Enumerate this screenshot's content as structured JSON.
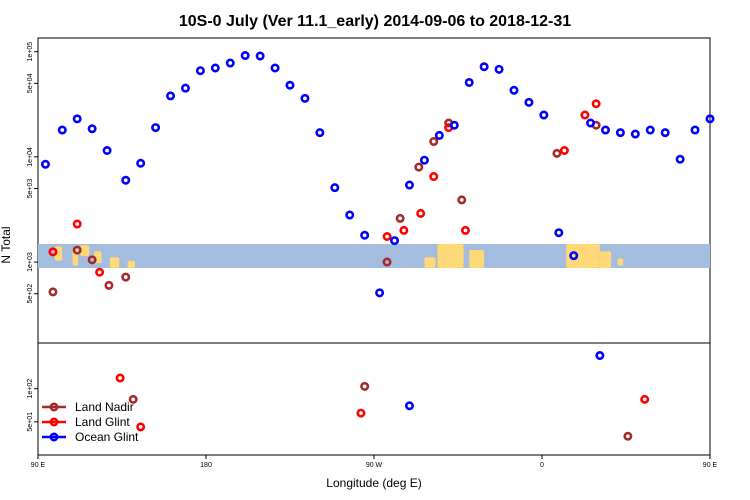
{
  "chart_data": {
    "type": "scatter",
    "title": "10S-0 July (Ver 11.1_early)   2014-09-06 to 2018-12-31",
    "xlabel": "Longitude (deg E)",
    "ylabel": "N Total",
    "xlim": [
      90,
      450
    ],
    "x_ticks": [
      {
        "value": 90,
        "label": "90 E"
      },
      {
        "value": 180,
        "label": "180"
      },
      {
        "value": 270,
        "label": "90 W"
      },
      {
        "value": 360,
        "label": "0"
      },
      {
        "value": 450,
        "label": "90 E"
      },
      {
        "value": 540,
        "label": "180"
      }
    ],
    "y_scale": "log",
    "upper_panel": {
      "ylim": [
        170,
        135000
      ],
      "y_ticks": [
        {
          "value": 500,
          "label": "5e+02"
        },
        {
          "value": 1000,
          "label": "1e+03"
        },
        {
          "value": 5000,
          "label": "5e+03"
        },
        {
          "value": 10000,
          "label": "1e+04"
        },
        {
          "value": 50000,
          "label": "5e+04"
        },
        {
          "value": 100000,
          "label": "1e+05"
        }
      ],
      "map_strip": {
        "band_color": "#a4bcde",
        "land_color": "#ffd878"
      }
    },
    "lower_panel": {
      "ylim": [
        25,
        260
      ],
      "y_ticks": [
        {
          "value": 50,
          "label": "5e+01"
        },
        {
          "value": 100,
          "label": "1e+02"
        }
      ]
    },
    "legend": {
      "placement": "bottom-left",
      "entries": [
        "Land Nadir",
        "Land Glint",
        "Ocean Glint"
      ]
    },
    "series": [
      {
        "name": "Land Nadir",
        "color": "#a52a2a",
        "upper": [
          {
            "x": 98,
            "y": 520
          },
          {
            "x": 111,
            "y": 1300
          },
          {
            "x": 119,
            "y": 1050
          },
          {
            "x": 128,
            "y": 600
          },
          {
            "x": 137,
            "y": 720
          },
          {
            "x": 277,
            "y": 1000
          },
          {
            "x": 284,
            "y": 2600
          },
          {
            "x": 294,
            "y": 8000
          },
          {
            "x": 302,
            "y": 14000
          },
          {
            "x": 310,
            "y": 21000
          },
          {
            "x": 317,
            "y": 3900
          },
          {
            "x": 368,
            "y": 10800
          },
          {
            "x": 389,
            "y": 20000
          },
          {
            "x": 465,
            "y": 500
          },
          {
            "x": 473,
            "y": 1300
          },
          {
            "x": 481,
            "y": 1050
          },
          {
            "x": 489,
            "y": 600
          },
          {
            "x": 497,
            "y": 720
          },
          {
            "x": 503,
            "y": 600
          },
          {
            "x": 510,
            "y": 720
          },
          {
            "x": 522,
            "y": 1050
          },
          {
            "x": 535,
            "y": 520
          }
        ],
        "lower": [
          {
            "x": 141,
            "y": 80
          },
          {
            "x": 265,
            "y": 105
          },
          {
            "x": 406,
            "y": 37
          },
          {
            "x": 519,
            "y": 80
          }
        ]
      },
      {
        "name": "Land Glint",
        "color": "#ff0000",
        "upper": [
          {
            "x": 98,
            "y": 1250
          },
          {
            "x": 111,
            "y": 2300
          },
          {
            "x": 123,
            "y": 800
          },
          {
            "x": 277,
            "y": 1750
          },
          {
            "x": 286,
            "y": 2000
          },
          {
            "x": 295,
            "y": 2900
          },
          {
            "x": 302,
            "y": 6500
          },
          {
            "x": 310,
            "y": 19000
          },
          {
            "x": 319,
            "y": 2000
          },
          {
            "x": 372,
            "y": 11500
          },
          {
            "x": 383,
            "y": 25000
          },
          {
            "x": 389,
            "y": 32000
          },
          {
            "x": 465,
            "y": 1250
          },
          {
            "x": 473,
            "y": 2300
          },
          {
            "x": 481,
            "y": 800
          },
          {
            "x": 493,
            "y": 800
          },
          {
            "x": 505,
            "y": 800
          },
          {
            "x": 522,
            "y": 1250
          }
        ],
        "lower": [
          {
            "x": 134,
            "y": 125
          },
          {
            "x": 145,
            "y": 45
          },
          {
            "x": 263,
            "y": 60
          },
          {
            "x": 415,
            "y": 80
          },
          {
            "x": 515,
            "y": 125
          },
          {
            "x": 526,
            "y": 45
          }
        ]
      },
      {
        "name": "Ocean Glint",
        "color": "#0000ff",
        "upper": [
          {
            "x": 94,
            "y": 8500
          },
          {
            "x": 103,
            "y": 18000
          },
          {
            "x": 111,
            "y": 23000
          },
          {
            "x": 119,
            "y": 18500
          },
          {
            "x": 127,
            "y": 11500
          },
          {
            "x": 137,
            "y": 6000
          },
          {
            "x": 145,
            "y": 8700
          },
          {
            "x": 153,
            "y": 19000
          },
          {
            "x": 161,
            "y": 38000
          },
          {
            "x": 169,
            "y": 45000
          },
          {
            "x": 177,
            "y": 66000
          },
          {
            "x": 185,
            "y": 70000
          },
          {
            "x": 193,
            "y": 78000
          },
          {
            "x": 201,
            "y": 92000
          },
          {
            "x": 209,
            "y": 91000
          },
          {
            "x": 217,
            "y": 70000
          },
          {
            "x": 225,
            "y": 48000
          },
          {
            "x": 233,
            "y": 36000
          },
          {
            "x": 241,
            "y": 17000
          },
          {
            "x": 249,
            "y": 5100
          },
          {
            "x": 257,
            "y": 2800
          },
          {
            "x": 265,
            "y": 1800
          },
          {
            "x": 273,
            "y": 510
          },
          {
            "x": 281,
            "y": 1600
          },
          {
            "x": 289,
            "y": 5400
          },
          {
            "x": 297,
            "y": 9300
          },
          {
            "x": 305,
            "y": 16000
          },
          {
            "x": 313,
            "y": 20000
          },
          {
            "x": 321,
            "y": 51000
          },
          {
            "x": 329,
            "y": 72000
          },
          {
            "x": 337,
            "y": 68000
          },
          {
            "x": 345,
            "y": 43000
          },
          {
            "x": 353,
            "y": 33000
          },
          {
            "x": 361,
            "y": 25000
          },
          {
            "x": 369,
            "y": 1900
          },
          {
            "x": 377,
            "y": 1150
          },
          {
            "x": 386,
            "y": 21000
          },
          {
            "x": 394,
            "y": 18000
          },
          {
            "x": 402,
            "y": 17000
          },
          {
            "x": 410,
            "y": 16500
          },
          {
            "x": 418,
            "y": 18000
          },
          {
            "x": 426,
            "y": 17000
          },
          {
            "x": 434,
            "y": 9500
          },
          {
            "x": 442,
            "y": 18000
          },
          {
            "x": 450,
            "y": 23000
          },
          {
            "x": 458,
            "y": 18500
          },
          {
            "x": 466,
            "y": 11500
          },
          {
            "x": 474,
            "y": 6000
          },
          {
            "x": 482,
            "y": 8700
          },
          {
            "x": 490,
            "y": 19000
          },
          {
            "x": 498,
            "y": 38000
          }
        ],
        "lower": [
          {
            "x": 289,
            "y": 70
          },
          {
            "x": 391,
            "y": 200
          }
        ]
      }
    ]
  }
}
